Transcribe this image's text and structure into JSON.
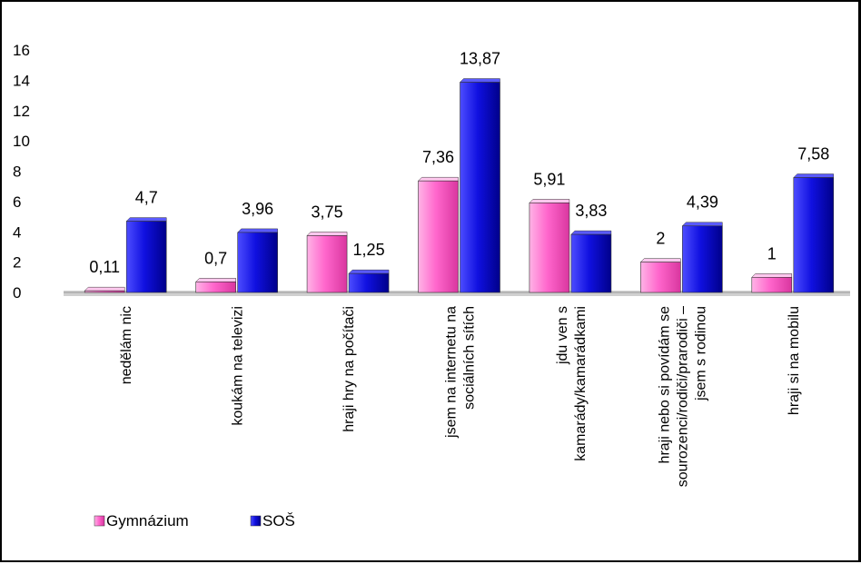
{
  "chart_data": {
    "type": "bar",
    "title": "",
    "xlabel": "",
    "ylabel": "",
    "ylim": [
      0,
      16
    ],
    "yticks": [
      0,
      2,
      4,
      6,
      8,
      10,
      12,
      14,
      16
    ],
    "grid": false,
    "legend_position": "bottom-left",
    "categories": [
      [
        "nedělám nic"
      ],
      [
        "koukám na televizi"
      ],
      [
        "hraji hry na počítači"
      ],
      [
        "jsem na internetu na",
        "sociálních sítích"
      ],
      [
        "jdu ven s",
        "kamarády/kamarádkami"
      ],
      [
        "hraji nebo si povídám se",
        "sourozenci/rodiči/prarodiči –",
        "jsem s rodinou"
      ],
      [
        "hraji si na mobilu"
      ]
    ],
    "series": [
      {
        "name": "Gymnázium",
        "color": "#ff66cc",
        "values": [
          0.11,
          0.7,
          3.75,
          7.36,
          5.91,
          2,
          1
        ],
        "labels": [
          "0,11",
          "0,7",
          "3,75",
          "7,36",
          "5,91",
          "2",
          "1"
        ]
      },
      {
        "name": "SOŠ",
        "color": "#1010e0",
        "values": [
          4.7,
          3.96,
          1.25,
          13.87,
          3.83,
          4.39,
          7.58
        ],
        "labels": [
          "4,7",
          "3,96",
          "1,25",
          "13,87",
          "3,83",
          "4,39",
          "7,58"
        ]
      }
    ]
  }
}
